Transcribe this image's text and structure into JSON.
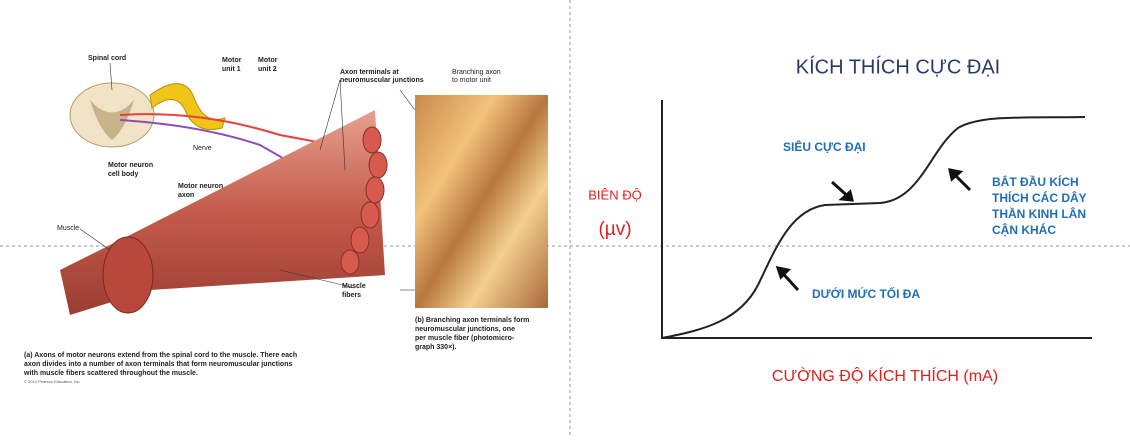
{
  "illustration": {
    "spinal_cord": "Spinal cord",
    "motor_unit_1": [
      "Motor",
      "unit 1"
    ],
    "motor_unit_2": [
      "Motor",
      "unit 2"
    ],
    "axon_terminals": [
      "Axon terminals at",
      "neuromuscular junctions"
    ],
    "branching_axon": [
      "Branching axon",
      "to motor unit"
    ],
    "nerve": "Nerve",
    "cell_body": [
      "Motor neuron",
      "cell body"
    ],
    "motor_axon": [
      "Motor neuron",
      "axon"
    ],
    "muscle": "Muscle",
    "muscle_fibers": [
      "Muscle",
      "fibers"
    ],
    "caption_b": [
      "(b) Branching axon terminals form",
      "neuromuscular junctions, one",
      "per muscle fiber (photomicro-",
      "graph 330×)."
    ],
    "caption_a": [
      "(a) Axons of motor neurons extend from the spinal cord to the muscle. There each",
      "axon divides into a number of axon terminals that form neuromuscular junctions",
      "with muscle fibers scattered throughout the muscle."
    ],
    "copyright": "© 2013 Pearson Education, Inc."
  },
  "graph": {
    "title": "KÍCH THÍCH CỰC ĐẠI",
    "y_label": "BIÊN ĐỘ",
    "y_unit": "(µv)",
    "x_label": "CƯỜNG ĐỘ KÍCH THÍCH (mA)",
    "supramaximal": "SIÊU CỰC ĐẠI",
    "neighbor": [
      "BẮT ĐẦU KÍCH",
      "THÍCH CÁC DÂY",
      "THẦN KINH LÂN",
      "CẬN KHÁC"
    ],
    "submaximal": "DƯỚI MỨC TỐI ĐA"
  }
}
